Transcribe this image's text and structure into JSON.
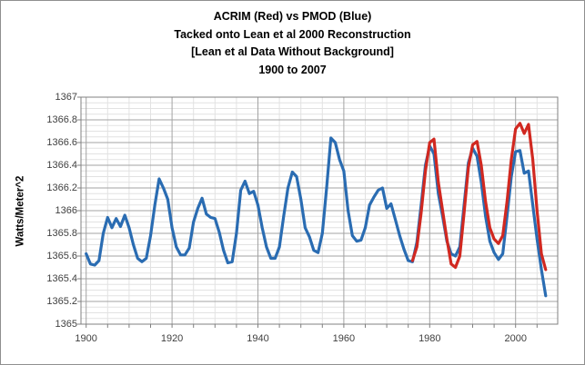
{
  "title_lines": [
    "ACRIM (Red) vs PMOD (Blue)",
    "Tacked onto Lean et al 2000 Reconstruction",
    "[Lean et al Data Without Background]",
    "1900 to 2007"
  ],
  "colors": {
    "blue_series": "#2A6CB2",
    "red_series": "#D12820",
    "grid_minor": "#E2E2E2",
    "grid_major": "#A3A3A3",
    "axis_frame": "#808080",
    "tick_text": "#3F3F3F",
    "title_text": "#000000",
    "window_border": "#8F8F8F",
    "background": "#FFFFFF"
  },
  "chart_data": {
    "type": "line",
    "title": "ACRIM (Red) vs PMOD (Blue) Tacked onto Lean et al 2000 Reconstruction [Lean et al Data Without Background] 1900 to 2007",
    "xlabel": "",
    "ylabel": "Watts/Meter^2",
    "xlim": [
      1898.8,
      2009.8
    ],
    "ylim": [
      1365,
      1367
    ],
    "grid": true,
    "legend_position": "none (series identified in title)",
    "x_tick_values": [
      1900,
      1920,
      1940,
      1960,
      1980,
      2000
    ],
    "x_tick_labels": [
      "1900",
      "1920",
      "1940",
      "1960",
      "1980",
      "2000"
    ],
    "x_minor_step": 5,
    "y_tick_values": [
      1367,
      1366.8,
      1366.6,
      1366.4,
      1366.2,
      1366,
      1365.8,
      1365.6,
      1365.4,
      1365.2,
      1365
    ],
    "y_tick_labels": [
      "1367",
      "1366.8",
      "1366.6",
      "1366.4",
      "1366.2",
      "1366",
      "1365.8",
      "1365.6",
      "1365.4",
      "1365.2",
      "1365"
    ],
    "y_minor_step": 0.05,
    "series": [
      {
        "name": "PMOD (Blue) tacked onto Lean et al 2000 Reconstruction",
        "color": "#2A6CB2",
        "x": [
          1900,
          1901,
          1902,
          1903,
          1904,
          1905,
          1906,
          1907,
          1908,
          1909,
          1910,
          1911,
          1912,
          1913,
          1914,
          1915,
          1916,
          1917,
          1918,
          1919,
          1920,
          1921,
          1922,
          1923,
          1924,
          1925,
          1926,
          1927,
          1928,
          1929,
          1930,
          1931,
          1932,
          1933,
          1934,
          1935,
          1936,
          1937,
          1938,
          1939,
          1940,
          1941,
          1942,
          1943,
          1944,
          1945,
          1946,
          1947,
          1948,
          1949,
          1950,
          1951,
          1952,
          1953,
          1954,
          1955,
          1956,
          1957,
          1958,
          1959,
          1960,
          1961,
          1962,
          1963,
          1964,
          1965,
          1966,
          1967,
          1968,
          1969,
          1970,
          1971,
          1972,
          1973,
          1974,
          1975,
          1976,
          1977,
          1978,
          1979,
          1980,
          1981,
          1982,
          1983,
          1984,
          1985,
          1986,
          1987,
          1988,
          1989,
          1990,
          1991,
          1992,
          1993,
          1994,
          1995,
          1996,
          1997,
          1998,
          1999,
          2000,
          2001,
          2002,
          2003,
          2004,
          2005,
          2006,
          2007
        ],
        "values": [
          1365.62,
          1365.53,
          1365.52,
          1365.56,
          1365.8,
          1365.94,
          1365.85,
          1365.93,
          1365.86,
          1365.96,
          1365.85,
          1365.7,
          1365.58,
          1365.55,
          1365.58,
          1365.78,
          1366.05,
          1366.28,
          1366.2,
          1366.1,
          1365.85,
          1365.68,
          1365.61,
          1365.61,
          1365.67,
          1365.9,
          1366.02,
          1366.11,
          1365.97,
          1365.94,
          1365.93,
          1365.81,
          1365.65,
          1365.54,
          1365.55,
          1365.8,
          1366.18,
          1366.26,
          1366.15,
          1366.17,
          1366.05,
          1365.85,
          1365.68,
          1365.58,
          1365.58,
          1365.68,
          1365.95,
          1366.2,
          1366.34,
          1366.3,
          1366.1,
          1365.85,
          1365.77,
          1365.65,
          1365.63,
          1365.8,
          1366.2,
          1366.64,
          1366.6,
          1366.45,
          1366.35,
          1366.0,
          1365.78,
          1365.73,
          1365.74,
          1365.85,
          1366.05,
          1366.12,
          1366.18,
          1366.2,
          1366.02,
          1366.06,
          1365.92,
          1365.78,
          1365.66,
          1365.56,
          1365.55,
          1365.72,
          1366.05,
          1366.4,
          1366.57,
          1366.5,
          1366.15,
          1365.95,
          1365.73,
          1365.62,
          1365.6,
          1365.68,
          1366.05,
          1366.42,
          1366.55,
          1366.48,
          1366.25,
          1365.95,
          1365.73,
          1365.63,
          1365.57,
          1365.62,
          1365.95,
          1366.3,
          1366.52,
          1366.53,
          1366.33,
          1366.35,
          1366.05,
          1365.75,
          1365.48,
          1365.25
        ]
      },
      {
        "name": "ACRIM (Red) tacked onto Lean et al 2000 Reconstruction",
        "color": "#D12820",
        "x": [
          1976,
          1977,
          1978,
          1979,
          1980,
          1981,
          1982,
          1983,
          1984,
          1985,
          1986,
          1987,
          1988,
          1989,
          1990,
          1991,
          1992,
          1993,
          1994,
          1995,
          1996,
          1997,
          1998,
          1999,
          2000,
          2001,
          2002,
          2003,
          2004,
          2005,
          2006,
          2007
        ],
        "values": [
          1365.56,
          1365.68,
          1365.98,
          1366.35,
          1366.6,
          1366.63,
          1366.25,
          1366.0,
          1365.75,
          1365.53,
          1365.5,
          1365.6,
          1365.98,
          1366.38,
          1366.58,
          1366.61,
          1366.4,
          1366.08,
          1365.85,
          1365.75,
          1365.71,
          1365.78,
          1366.08,
          1366.45,
          1366.72,
          1366.77,
          1366.68,
          1366.76,
          1366.45,
          1366.0,
          1365.62,
          1365.48
        ]
      }
    ]
  }
}
